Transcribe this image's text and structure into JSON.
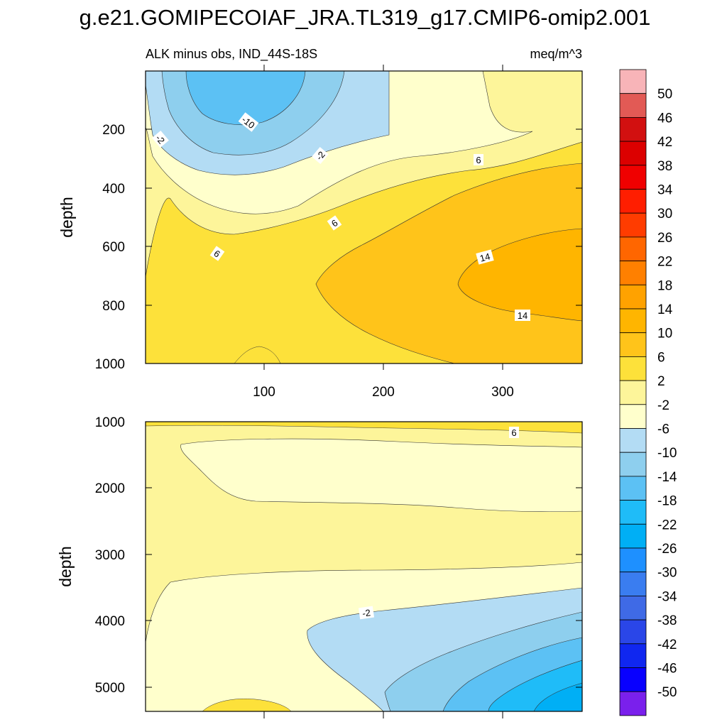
{
  "title": "g.e21.GOMIPECOIAF_JRA.TL319_g17.CMIP6-omip2.001",
  "chart_data": {
    "type": "contour",
    "variable": "ALK minus obs",
    "region": "IND_44S-18S",
    "units": "meq/m^3",
    "levels": [
      -50,
      -46,
      -42,
      -38,
      -34,
      -30,
      -26,
      -22,
      -18,
      -14,
      -10,
      -6,
      -2,
      2,
      6,
      10,
      14,
      18,
      22,
      26,
      30,
      34,
      38,
      42,
      46,
      50
    ],
    "colorbar": {
      "labels": [
        "50",
        "46",
        "42",
        "38",
        "34",
        "30",
        "26",
        "22",
        "18",
        "14",
        "10",
        "6",
        "2",
        "-2",
        "-6",
        "-10",
        "-14",
        "-18",
        "-22",
        "-26",
        "-30",
        "-34",
        "-38",
        "-42",
        "-46",
        "-50"
      ],
      "colors": [
        "#f8b4b8",
        "#e25a55",
        "#d21010",
        "#dc0000",
        "#f00000",
        "#ff1e00",
        "#ff3c00",
        "#ff6600",
        "#ff8000",
        "#ffa200",
        "#ffb500",
        "#ffc41a",
        "#fde13a",
        "#fdf59a",
        "#ffffcc",
        "#b3dcf4",
        "#8ecfee",
        "#5cc1f4",
        "#1fbcf8",
        "#00aff5",
        "#1e90ff",
        "#3a7df0",
        "#3f6ae6",
        "#2a46e8",
        "#1027f0",
        "#0800ff",
        "#7a20ec"
      ]
    },
    "panels": [
      {
        "name": "upper",
        "xlim": [
          0,
          370
        ],
        "xticks": [
          "100",
          "200",
          "300"
        ],
        "ylim": [
          0,
          1000
        ],
        "yticks": [
          "200",
          "400",
          "600",
          "800",
          "1000"
        ],
        "ylabel": "depth",
        "contour_labels": [
          "-10",
          "-2",
          "-2",
          "6",
          "6",
          "6",
          "14",
          "14"
        ]
      },
      {
        "name": "lower",
        "xlim": [
          0,
          370
        ],
        "ylim": [
          1000,
          5400
        ],
        "yticks": [
          "1000",
          "2000",
          "3000",
          "4000",
          "5000"
        ],
        "ylabel": "depth",
        "contour_labels": [
          "6",
          "-2"
        ]
      }
    ]
  }
}
